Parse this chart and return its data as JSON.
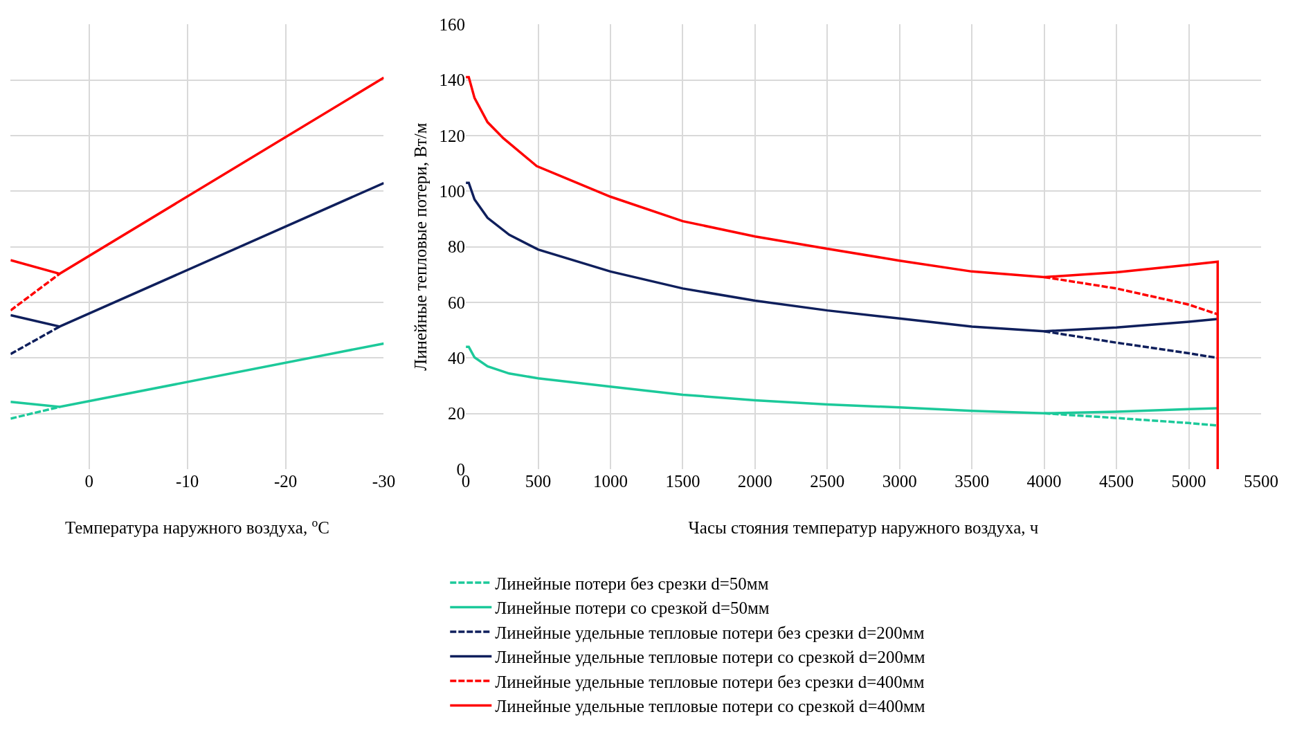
{
  "chart_data": [
    {
      "type": "line",
      "xlabel": "Температура наружного воздуха, $^{o}$C",
      "xlim": [
        8,
        -30
      ],
      "xticks": [
        0,
        -10,
        -20,
        -30
      ],
      "ylim": [
        0,
        160
      ],
      "yticks": [
        0,
        20,
        40,
        60,
        80,
        100,
        120,
        140,
        160
      ],
      "tick_labels": "x",
      "grid": true,
      "legend": false,
      "series": [
        {
          "color": "#1cc99a",
          "line_style": "dashed",
          "x": [
            8,
            3
          ],
          "values": [
            18.2,
            22.4
          ]
        },
        {
          "color": "#1cc99a",
          "line_style": "solid",
          "x": [
            8,
            3,
            -30
          ],
          "values": [
            24.2,
            22.4,
            45.2
          ]
        },
        {
          "color": "#0f1f5c",
          "line_style": "dashed",
          "x": [
            8,
            3
          ],
          "values": [
            41.4,
            51.3
          ]
        },
        {
          "color": "#0f1f5c",
          "line_style": "solid",
          "x": [
            8,
            3,
            -30
          ],
          "values": [
            55.4,
            51.3,
            102.9
          ]
        },
        {
          "color": "#ff0000",
          "line_style": "dashed",
          "x": [
            8,
            3
          ],
          "values": [
            57.1,
            70.3
          ]
        },
        {
          "color": "#ff0000",
          "line_style": "solid",
          "x": [
            8,
            3,
            -30
          ],
          "values": [
            75.2,
            70.3,
            140.8
          ]
        }
      ]
    },
    {
      "type": "line",
      "xlabel": "Часы стояния температур наружного воздуха, ч",
      "ylabel": "Линейные тепловые потери, Вт/м",
      "xlim": [
        0,
        5500
      ],
      "xticks": [
        0,
        500,
        1000,
        1500,
        2000,
        2500,
        3000,
        3500,
        4000,
        4500,
        5000,
        5500
      ],
      "ylim": [
        0,
        160
      ],
      "yticks": [
        0,
        20,
        40,
        60,
        80,
        100,
        120,
        140,
        160
      ],
      "grid": true,
      "legend": "bottom",
      "series": [
        {
          "name": "Линейные потери без срезки d=50мм",
          "color": "#1cc99a",
          "line_style": "dashed",
          "x": [
            4000,
            4500,
            5000,
            5200
          ],
          "values": [
            20.1,
            18.4,
            16.6,
            15.7
          ]
        },
        {
          "name": "Линейные потери со срезкой d=50мм",
          "color": "#1cc99a",
          "line_style": "solid",
          "x": [
            0,
            20,
            60,
            150,
            300,
            500,
            1000,
            1500,
            2000,
            2500,
            3000,
            3500,
            4000,
            4500,
            5000,
            5200
          ],
          "values": [
            44,
            44,
            40.2,
            37,
            34.4,
            32.7,
            29.7,
            26.8,
            24.8,
            23.3,
            22.2,
            21,
            20.1,
            20.7,
            21.6,
            21.9
          ]
        },
        {
          "name": "Линейные удельные тепловые потери без срезки d=200мм",
          "color": "#0f1f5c",
          "line_style": "dashed",
          "x": [
            4000,
            4500,
            5000,
            5200
          ],
          "values": [
            49.6,
            45.5,
            41.7,
            40
          ]
        },
        {
          "name": "Линейные удельные тепловые потери со срезкой d=200мм",
          "color": "#0f1f5c",
          "line_style": "solid",
          "x": [
            0,
            20,
            60,
            150,
            300,
            500,
            1000,
            1500,
            2000,
            2500,
            3000,
            3500,
            4000,
            4500,
            5000,
            5200
          ],
          "values": [
            103,
            103,
            97,
            90.4,
            84.3,
            79,
            71.1,
            65,
            60.6,
            57.1,
            54.2,
            51.3,
            49.6,
            51,
            53,
            54
          ]
        },
        {
          "name": "Линейные удельные тепловые потери без срезки d=400мм",
          "color": "#ff0000",
          "line_style": "dashed",
          "x": [
            4000,
            4500,
            5000,
            5200
          ],
          "values": [
            69.1,
            65,
            59.2,
            55.7
          ]
        },
        {
          "name": "Линейные удельные тепловые потери со срезкой d=400мм",
          "color": "#ff0000",
          "line_style": "solid",
          "x": [
            0,
            20,
            60,
            150,
            260,
            490,
            1000,
            1500,
            2000,
            2500,
            3000,
            3500,
            4000,
            4500,
            5000,
            5200,
            5200
          ],
          "values": [
            141,
            141,
            133.5,
            124.8,
            119,
            109,
            98,
            89.2,
            83.7,
            79.3,
            75,
            71.1,
            69.1,
            70.8,
            73.5,
            74.6,
            0
          ]
        }
      ]
    }
  ]
}
